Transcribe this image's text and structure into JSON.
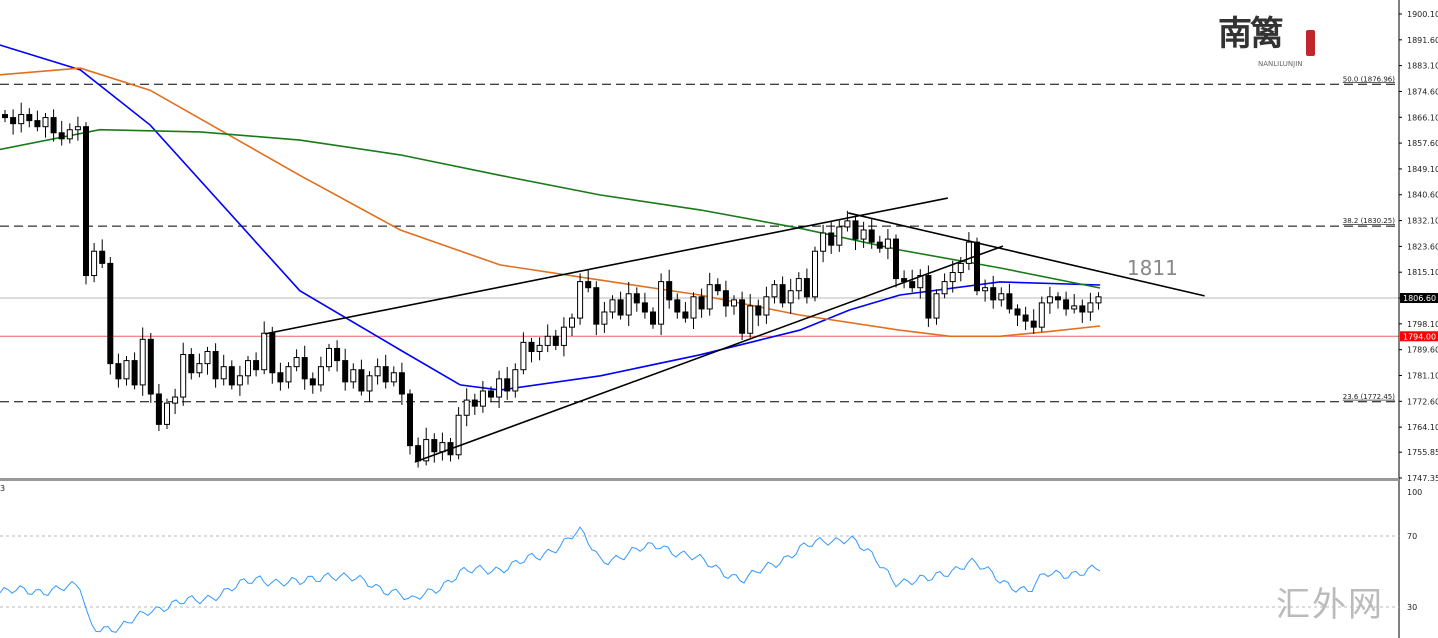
{
  "logo": {
    "cn": "南篱",
    "en": "NANLILUNJIN"
  },
  "watermark": "汇外网",
  "chart_data": [
    {
      "type": "candlestick",
      "title": "",
      "price_axis": {
        "ylim": [
          1747.35,
          1900.1
        ],
        "ticks": [
          "1900.10",
          "1891.60",
          "1883.10",
          "1874.60",
          "1866.10",
          "1857.60",
          "1849.10",
          "1840.60",
          "1832.10",
          "1823.60",
          "1815.10",
          "1806.60",
          "1798.10",
          "1789.60",
          "1781.10",
          "1772.60",
          "1764.10",
          "1755.85",
          "1747.35"
        ]
      },
      "closes": [
        1866,
        1864,
        1867,
        1865,
        1863,
        1866,
        1861,
        1859,
        1862,
        1863,
        1814,
        1822,
        1818,
        1785,
        1780,
        1786,
        1778,
        1793,
        1775,
        1765,
        1772,
        1774,
        1788,
        1782,
        1785,
        1789,
        1780,
        1784,
        1778,
        1781,
        1786,
        1783,
        1795,
        1782,
        1779,
        1784,
        1787,
        1780,
        1778,
        1784,
        1790,
        1786,
        1779,
        1783,
        1776,
        1781,
        1784,
        1779,
        1782,
        1775,
        1758,
        1753,
        1760,
        1756,
        1759,
        1755,
        1768,
        1773,
        1771,
        1776,
        1774,
        1780,
        1776,
        1783,
        1792,
        1789,
        1791,
        1794,
        1791,
        1797,
        1800,
        1812,
        1810,
        1798,
        1802,
        1806,
        1801,
        1808,
        1805,
        1802,
        1798,
        1812,
        1806,
        1802,
        1800,
        1807,
        1803,
        1811,
        1809,
        1804,
        1806,
        1795,
        1804,
        1801,
        1807,
        1811,
        1805,
        1809,
        1813,
        1807,
        1822,
        1828,
        1824,
        1830,
        1832,
        1826,
        1829,
        1825,
        1823,
        1826,
        1813,
        1812,
        1810,
        1814,
        1800,
        1808,
        1812,
        1815,
        1818,
        1825,
        1809,
        1810,
        1806,
        1808,
        1803,
        1801,
        1799,
        1797,
        1805,
        1807,
        1806,
        1803,
        1804,
        1802,
        1805,
        1807
      ],
      "moving_averages": [
        {
          "name": "MA blue",
          "color": "#0000ff",
          "points": [
            [
              -1,
              1890.2
            ],
            [
              9.3,
              1881.7
            ],
            [
              17.9,
              1863.6
            ],
            [
              36.4,
              1809
            ],
            [
              48.8,
              1789.5
            ],
            [
              56.2,
              1778
            ],
            [
              61.1,
              1776.3
            ],
            [
              73.5,
              1781
            ],
            [
              85.8,
              1787.9
            ],
            [
              98.1,
              1796
            ],
            [
              104.3,
              1802.7
            ],
            [
              110.5,
              1807.6
            ],
            [
              122.8,
              1811.9
            ],
            [
              135.2,
              1810.9
            ]
          ]
        },
        {
          "name": "MA orange",
          "color": "#e07020",
          "points": [
            [
              -1,
              1880
            ],
            [
              9.3,
              1882.3
            ],
            [
              17.9,
              1875
            ],
            [
              36.4,
              1847
            ],
            [
              48.8,
              1829
            ],
            [
              61.1,
              1817.5
            ],
            [
              73.5,
              1812.5
            ],
            [
              85.8,
              1807.6
            ],
            [
              98.1,
              1801
            ],
            [
              110.5,
              1796
            ],
            [
              116.7,
              1794
            ],
            [
              122.8,
              1794
            ],
            [
              129,
              1795.6
            ],
            [
              135.2,
              1797.4
            ]
          ]
        },
        {
          "name": "MA green",
          "color": "#1a7a1a",
          "points": [
            [
              -1,
              1855.3
            ],
            [
              11.7,
              1862
            ],
            [
              24.1,
              1861.3
            ],
            [
              36.4,
              1858.6
            ],
            [
              48.8,
              1853.7
            ],
            [
              61.1,
              1847
            ],
            [
              73.5,
              1840.5
            ],
            [
              85.8,
              1835.6
            ],
            [
              98.1,
              1829.6
            ],
            [
              110.5,
              1822.4
            ],
            [
              122.8,
              1816.5
            ],
            [
              135.2,
              1809.9
            ]
          ]
        }
      ],
      "trendlines": [
        {
          "from": [
            32.1,
            1794.8
          ],
          "to": [
            116.4,
            1839.5
          ]
        },
        {
          "from": [
            50.6,
            1752.6
          ],
          "to": [
            123.2,
            1823.7
          ]
        },
        {
          "from": [
            104.1,
            1834.6
          ],
          "to": [
            148.1,
            1807.3
          ]
        }
      ],
      "fib_levels": [
        {
          "label": "50.0 (1876.96)",
          "price": 1876.96
        },
        {
          "label": "38.2 (1830.25)",
          "price": 1830.25
        },
        {
          "label": "23.6 (1772.45)",
          "price": 1772.45
        }
      ],
      "current_price": {
        "label": "1806.60",
        "price": 1806.6,
        "color": "#000000"
      },
      "support_line": {
        "label": "1794.00",
        "price": 1794.0,
        "color": "#ff0000"
      },
      "annotation": {
        "text": "1811",
        "index": 139,
        "price": 1816.5
      }
    },
    {
      "type": "line",
      "name": "RSI",
      "panel_label": "3",
      "ylim": [
        0,
        100
      ],
      "levels": [
        70,
        30
      ],
      "ticks": [
        "100",
        "70",
        "30"
      ],
      "color": "#3399ff",
      "points": [
        [
          -0.6,
          38
        ],
        [
          9.3,
          41
        ],
        [
          10.5,
          20
        ],
        [
          14.2,
          17
        ],
        [
          17.9,
          29
        ],
        [
          24.1,
          34
        ],
        [
          31.5,
          46
        ],
        [
          36.4,
          43
        ],
        [
          40.1,
          49
        ],
        [
          48.8,
          38
        ],
        [
          50,
          32
        ],
        [
          56.2,
          49
        ],
        [
          61.1,
          52
        ],
        [
          66,
          58
        ],
        [
          70.9,
          73
        ],
        [
          73.5,
          56
        ],
        [
          80.9,
          65
        ],
        [
          85.8,
          56
        ],
        [
          91.4,
          45
        ],
        [
          98.1,
          63
        ],
        [
          104.3,
          70
        ],
        [
          109.9,
          45
        ],
        [
          114.2,
          45
        ],
        [
          119.1,
          56
        ],
        [
          122.8,
          45
        ],
        [
          126.5,
          39
        ],
        [
          128.5,
          48
        ],
        [
          135.2,
          51
        ]
      ]
    }
  ]
}
